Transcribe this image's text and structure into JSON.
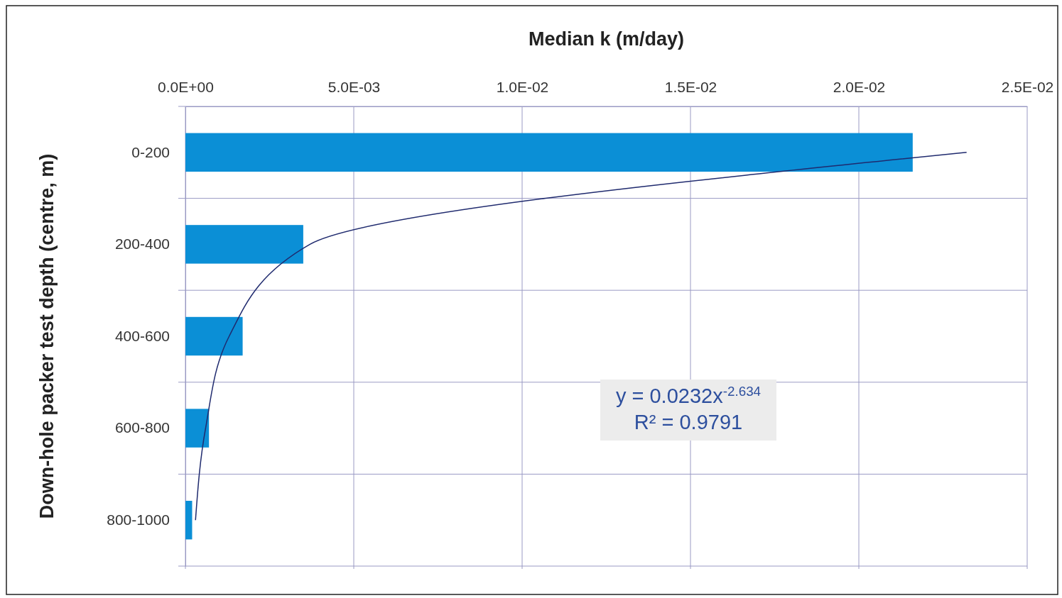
{
  "chart_data": {
    "type": "bar",
    "orientation": "horizontal",
    "xlabel": "Median k (m/day)",
    "ylabel": "Down-hole packer test depth (centre, m)",
    "categories": [
      "0-200",
      "200-400",
      "400-600",
      "600-800",
      "800-1000"
    ],
    "series": [
      {
        "color": "#0b8fd6",
        "values": [
          0.0216,
          0.0035,
          0.0017,
          0.0007,
          0.0002
        ]
      },
      {
        "type": "line",
        "color": "#1f2a6e",
        "values": [
          0.0232,
          0.0037,
          0.0013,
          0.0006,
          0.0003
        ]
      }
    ],
    "xlim": [
      0,
      0.025
    ],
    "xticks": [
      {
        "value": 0,
        "label": "0.0E+00"
      },
      {
        "value": 0.005,
        "label": "5.0E-03"
      },
      {
        "value": 0.01,
        "label": "1.0E-02"
      },
      {
        "value": 0.015,
        "label": "1.5E-02"
      },
      {
        "value": 0.02,
        "label": "2.0E-02"
      },
      {
        "value": 0.025,
        "label": "2.5E-02"
      }
    ],
    "grid": true,
    "annotations": [
      "y = 0.0232x$^{-2.634}$",
      "R² = 0.9791"
    ]
  }
}
